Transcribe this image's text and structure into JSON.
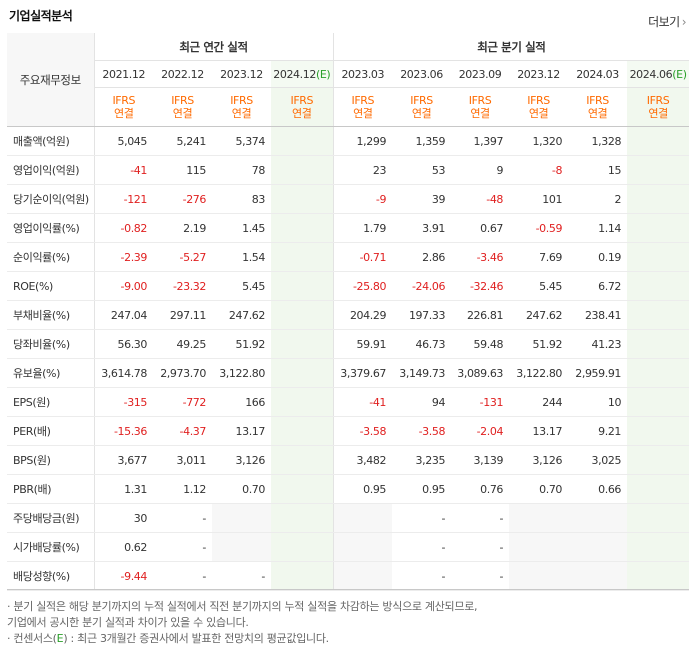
{
  "header": {
    "title": "기업실적분석",
    "more_label": "더보기",
    "more_icon": "chevron-right-icon"
  },
  "table": {
    "corner_label": "주요재무정보",
    "group_annual": "최근 연간 실적",
    "group_quarter": "최근 분기 실적",
    "annual_periods": [
      "2021.12",
      "2022.12",
      "2023.12",
      "2024.12"
    ],
    "annual_est_suffix": "(E)",
    "quarter_periods": [
      "2023.03",
      "2023.06",
      "2023.09",
      "2023.12",
      "2024.03",
      "2024.06"
    ],
    "quarter_est_suffix": "(E)",
    "basis_line1": "IFRS",
    "basis_line2": "연결",
    "rows": [
      {
        "label": "매출액(억원)",
        "v": [
          "5,045",
          "5,241",
          "5,374",
          "",
          "1,299",
          "1,359",
          "1,397",
          "1,320",
          "1,328",
          ""
        ]
      },
      {
        "label": "영업이익(억원)",
        "v": [
          "-41",
          "115",
          "78",
          "",
          "23",
          "53",
          "9",
          "-8",
          "15",
          ""
        ]
      },
      {
        "label": "당기순이익(억원)",
        "v": [
          "-121",
          "-276",
          "83",
          "",
          "-9",
          "39",
          "-48",
          "101",
          "2",
          ""
        ]
      },
      {
        "label": "영업이익률(%)",
        "v": [
          "-0.82",
          "2.19",
          "1.45",
          "",
          "1.79",
          "3.91",
          "0.67",
          "-0.59",
          "1.14",
          ""
        ]
      },
      {
        "label": "순이익률(%)",
        "v": [
          "-2.39",
          "-5.27",
          "1.54",
          "",
          "-0.71",
          "2.86",
          "-3.46",
          "7.69",
          "0.19",
          ""
        ]
      },
      {
        "label": "ROE(%)",
        "v": [
          "-9.00",
          "-23.32",
          "5.45",
          "",
          "-25.80",
          "-24.06",
          "-32.46",
          "5.45",
          "6.72",
          ""
        ]
      },
      {
        "label": "부채비율(%)",
        "v": [
          "247.04",
          "297.11",
          "247.62",
          "",
          "204.29",
          "197.33",
          "226.81",
          "247.62",
          "238.41",
          ""
        ]
      },
      {
        "label": "당좌비율(%)",
        "v": [
          "56.30",
          "49.25",
          "51.92",
          "",
          "59.91",
          "46.73",
          "59.48",
          "51.92",
          "41.23",
          ""
        ]
      },
      {
        "label": "유보율(%)",
        "v": [
          "3,614.78",
          "2,973.70",
          "3,122.80",
          "",
          "3,379.67",
          "3,149.73",
          "3,089.63",
          "3,122.80",
          "2,959.91",
          ""
        ]
      },
      {
        "label": "EPS(원)",
        "v": [
          "-315",
          "-772",
          "166",
          "",
          "-41",
          "94",
          "-131",
          "244",
          "10",
          ""
        ]
      },
      {
        "label": "PER(배)",
        "v": [
          "-15.36",
          "-4.37",
          "13.17",
          "",
          "-3.58",
          "-3.58",
          "-2.04",
          "13.17",
          "9.21",
          ""
        ]
      },
      {
        "label": "BPS(원)",
        "v": [
          "3,677",
          "3,011",
          "3,126",
          "",
          "3,482",
          "3,235",
          "3,139",
          "3,126",
          "3,025",
          ""
        ]
      },
      {
        "label": "PBR(배)",
        "v": [
          "1.31",
          "1.12",
          "0.70",
          "",
          "0.95",
          "0.95",
          "0.76",
          "0.70",
          "0.66",
          ""
        ]
      },
      {
        "label": "주당배당금(원)",
        "v": [
          "30",
          "-",
          "",
          "",
          "",
          "-",
          "-",
          "",
          "",
          ""
        ]
      },
      {
        "label": "시가배당률(%)",
        "v": [
          "0.62",
          "-",
          "",
          "",
          "",
          "-",
          "-",
          "",
          "",
          ""
        ]
      },
      {
        "label": "배당성향(%)",
        "v": [
          "-9.44",
          "-",
          "-",
          "",
          "",
          "-",
          "-",
          "",
          "",
          ""
        ]
      }
    ]
  },
  "notes": {
    "line1": "· 분기 실적은 해당 분기까지의 누적 실적에서 직전 분기까지의 누적 실적을 차감하는 방식으로 계산되므로,",
    "line2": "  기업에서 공시한 분기 실적과 차이가 있을 수 있습니다.",
    "line3_prefix": "· 컨센서스(",
    "line3_mark": "E",
    "line3_suffix": ") : 최근 3개월간 증권사에서 발표한 전망치의 평균값입니다."
  },
  "colors": {
    "negative": "#e02020",
    "basis": "#ff6a00",
    "estimate_mark": "#2aa02a",
    "estimate_bg": "#f1f8ee"
  }
}
